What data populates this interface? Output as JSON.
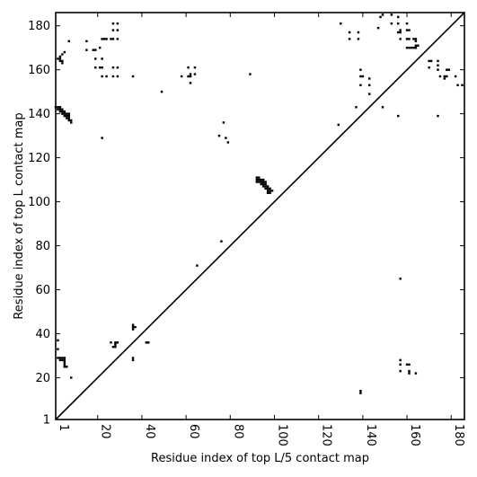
{
  "chart_data": {
    "type": "scatter",
    "title": "",
    "xlabel": "Residue index of top L/5 contact map",
    "ylabel": "Residue index of top L contact map",
    "xlim": [
      1,
      186
    ],
    "ylim": [
      1,
      186
    ],
    "x_ticks": [
      1,
      20,
      40,
      60,
      80,
      100,
      120,
      140,
      160,
      180
    ],
    "y_ticks": [
      1,
      20,
      40,
      60,
      80,
      100,
      120,
      140,
      160,
      180
    ],
    "x_tick_labels": [
      "1",
      "20",
      "40",
      "60",
      "80",
      "100",
      "120",
      "140",
      "160",
      "180"
    ],
    "y_tick_labels": [
      "1",
      "20",
      "40",
      "60",
      "80",
      "100",
      "120",
      "140",
      "160",
      "180"
    ],
    "diagonal": true,
    "marker_color": "#000000",
    "series": [
      {
        "points": [
          [
            1,
            143
          ],
          [
            2,
            143
          ],
          [
            3,
            143
          ],
          [
            2,
            142
          ],
          [
            3,
            142
          ],
          [
            4,
            142
          ],
          [
            3,
            141
          ],
          [
            4,
            141
          ],
          [
            5,
            141
          ],
          [
            4,
            140
          ],
          [
            5,
            140
          ],
          [
            6,
            140
          ],
          [
            5,
            139
          ],
          [
            6,
            139
          ],
          [
            7,
            139
          ],
          [
            7,
            140
          ],
          [
            6,
            138
          ],
          [
            7,
            138
          ],
          [
            7,
            137
          ],
          [
            8,
            137
          ],
          [
            8,
            136
          ],
          [
            2,
            165
          ],
          [
            3,
            165
          ],
          [
            3,
            166
          ],
          [
            3,
            164
          ],
          [
            4,
            164
          ],
          [
            4,
            163
          ],
          [
            4,
            167
          ],
          [
            5,
            168
          ],
          [
            7,
            173
          ],
          [
            15,
            173
          ],
          [
            15,
            169
          ],
          [
            18,
            169
          ],
          [
            19,
            169
          ],
          [
            21,
            170
          ],
          [
            19,
            165
          ],
          [
            19,
            161
          ],
          [
            21,
            161
          ],
          [
            22,
            161
          ],
          [
            22,
            157
          ],
          [
            24,
            157
          ],
          [
            27,
            157
          ],
          [
            29,
            157
          ],
          [
            27,
            161
          ],
          [
            29,
            161
          ],
          [
            22,
            165
          ],
          [
            22,
            174
          ],
          [
            23,
            174
          ],
          [
            24,
            174
          ],
          [
            26,
            174
          ],
          [
            27,
            174
          ],
          [
            29,
            174
          ],
          [
            27,
            178
          ],
          [
            29,
            178
          ],
          [
            27,
            181
          ],
          [
            29,
            181
          ],
          [
            36,
            157
          ],
          [
            49,
            150
          ],
          [
            58,
            157
          ],
          [
            61,
            157
          ],
          [
            62,
            157
          ],
          [
            62,
            158
          ],
          [
            61,
            161
          ],
          [
            64,
            161
          ],
          [
            64,
            158
          ],
          [
            62,
            154
          ],
          [
            89,
            158
          ],
          [
            22,
            129
          ],
          [
            75,
            130
          ],
          [
            77,
            136
          ],
          [
            78,
            129
          ],
          [
            79,
            127
          ],
          [
            76,
            82
          ],
          [
            65,
            71
          ],
          [
            92,
            111
          ],
          [
            93,
            111
          ],
          [
            92,
            110
          ],
          [
            93,
            110
          ],
          [
            94,
            110
          ],
          [
            95,
            110
          ],
          [
            92,
            109
          ],
          [
            93,
            109
          ],
          [
            94,
            109
          ],
          [
            95,
            109
          ],
          [
            96,
            109
          ],
          [
            94,
            108
          ],
          [
            95,
            108
          ],
          [
            96,
            108
          ],
          [
            95,
            107
          ],
          [
            96,
            107
          ],
          [
            97,
            107
          ],
          [
            96,
            106
          ],
          [
            97,
            106
          ],
          [
            98,
            106
          ],
          [
            97,
            105
          ],
          [
            98,
            105
          ],
          [
            99,
            105
          ],
          [
            97,
            104
          ],
          [
            98,
            104
          ],
          [
            36,
            44
          ],
          [
            36,
            43
          ],
          [
            37,
            43
          ],
          [
            36,
            42
          ],
          [
            42,
            36
          ],
          [
            43,
            36
          ],
          [
            36,
            29
          ],
          [
            36,
            28
          ],
          [
            26,
            36
          ],
          [
            28,
            36
          ],
          [
            29,
            36
          ],
          [
            28,
            35
          ],
          [
            27,
            34
          ],
          [
            28,
            34
          ],
          [
            2,
            37
          ],
          [
            2,
            33
          ],
          [
            2,
            29
          ],
          [
            3,
            29
          ],
          [
            4,
            29
          ],
          [
            5,
            29
          ],
          [
            3,
            28
          ],
          [
            4,
            28
          ],
          [
            5,
            28
          ],
          [
            5,
            27
          ],
          [
            5,
            26
          ],
          [
            5,
            25
          ],
          [
            6,
            25
          ],
          [
            8,
            20
          ],
          [
            129,
            135
          ],
          [
            130,
            181
          ],
          [
            134,
            174
          ],
          [
            134,
            177
          ],
          [
            138,
            174
          ],
          [
            138,
            177
          ],
          [
            137,
            143
          ],
          [
            139,
            160
          ],
          [
            139,
            157
          ],
          [
            140,
            157
          ],
          [
            139,
            153
          ],
          [
            143,
            156
          ],
          [
            143,
            153
          ],
          [
            143,
            149
          ],
          [
            139,
            14
          ],
          [
            139,
            13
          ],
          [
            147,
            179
          ],
          [
            148,
            184
          ],
          [
            149,
            185
          ],
          [
            149,
            143
          ],
          [
            153,
            185
          ],
          [
            153,
            181
          ],
          [
            156,
            184
          ],
          [
            156,
            181
          ],
          [
            157,
            178
          ],
          [
            156,
            177
          ],
          [
            157,
            177
          ],
          [
            160,
            181
          ],
          [
            160,
            178
          ],
          [
            161,
            178
          ],
          [
            157,
            174
          ],
          [
            160,
            174
          ],
          [
            161,
            174
          ],
          [
            163,
            174
          ],
          [
            164,
            174
          ],
          [
            160,
            170
          ],
          [
            161,
            170
          ],
          [
            162,
            170
          ],
          [
            163,
            170
          ],
          [
            164,
            170
          ],
          [
            164,
            171
          ],
          [
            165,
            171
          ],
          [
            164,
            173
          ],
          [
            156,
            139
          ],
          [
            174,
            139
          ],
          [
            157,
            65
          ],
          [
            157,
            28
          ],
          [
            157,
            26
          ],
          [
            157,
            23
          ],
          [
            160,
            26
          ],
          [
            161,
            26
          ],
          [
            161,
            23
          ],
          [
            161,
            22
          ],
          [
            164,
            22
          ],
          [
            170,
            164
          ],
          [
            171,
            164
          ],
          [
            174,
            164
          ],
          [
            170,
            161
          ],
          [
            174,
            162
          ],
          [
            174,
            160
          ],
          [
            178,
            160
          ],
          [
            179,
            160
          ],
          [
            177,
            157
          ],
          [
            178,
            157
          ],
          [
            182,
            157
          ],
          [
            175,
            157
          ],
          [
            177,
            156
          ],
          [
            183,
            153
          ],
          [
            185,
            153
          ]
        ]
      }
    ]
  }
}
